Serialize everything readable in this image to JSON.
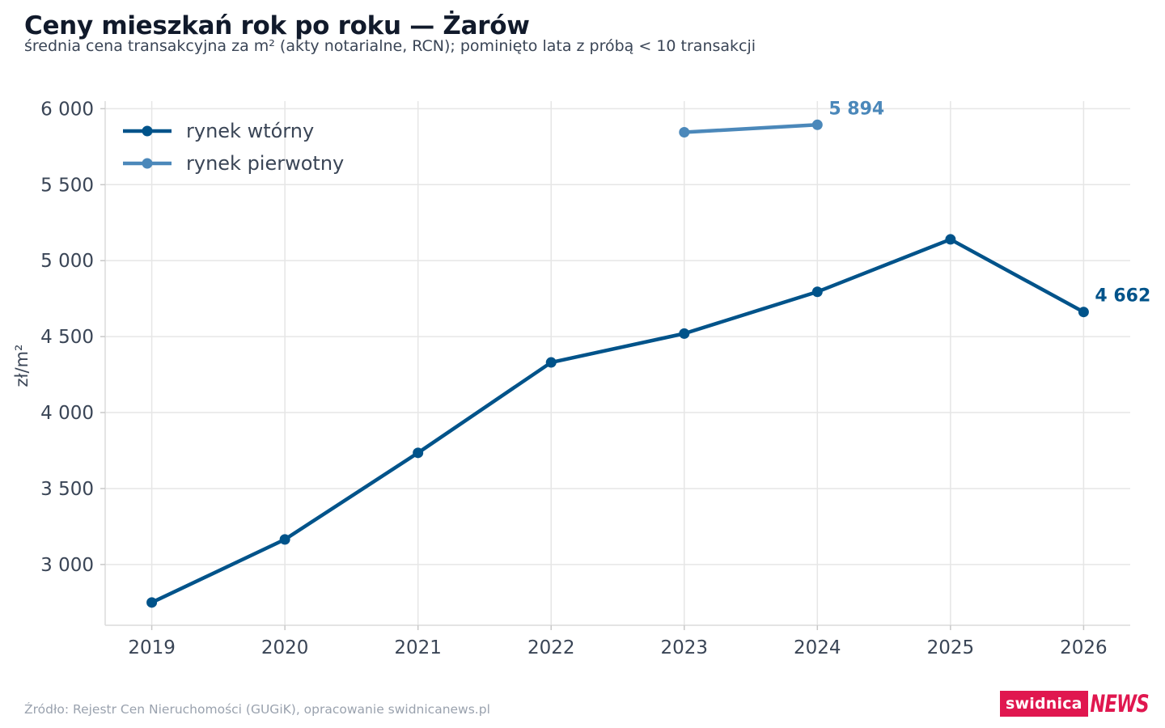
{
  "header": {
    "title": "Ceny mieszkań rok po roku — Żarów",
    "subtitle": "średnia cena transakcyjna za m² (akty notarialne, RCN); pominięto lata z próbą < 10 transakcji"
  },
  "footer": {
    "source": "Źródło: Rejestr Cen Nieruchomości (GUGiK), opracowanie swidnicanews.pl",
    "logo_part1": "swidnica",
    "logo_part2": "NEWS"
  },
  "colors": {
    "secondary_market": "#00538a",
    "primary_market": "#4b88ba",
    "grid": "#e6e6e6",
    "brand": "#e0174f"
  },
  "chart_data": {
    "type": "line",
    "x": [
      2019,
      2020,
      2021,
      2022,
      2023,
      2024,
      2025,
      2026
    ],
    "xlim": [
      2018.65,
      2026.35
    ],
    "ylim": [
      2600,
      6050
    ],
    "ylabel": "zł/m²",
    "y_ticks": [
      3000,
      3500,
      4000,
      4500,
      5000,
      5500,
      6000
    ],
    "y_tick_labels": [
      "3 000",
      "3 500",
      "4 000",
      "4 500",
      "5 000",
      "5 500",
      "6 000"
    ],
    "x_tick_labels": [
      "2019",
      "2020",
      "2021",
      "2022",
      "2023",
      "2024",
      "2025",
      "2026"
    ],
    "grid": true,
    "legend_position": "top-left",
    "series": [
      {
        "name": "rynek wtórny",
        "x": [
          2019,
          2020,
          2021,
          2022,
          2023,
          2024,
          2025,
          2026
        ],
        "values": [
          2750,
          3165,
          3735,
          4330,
          4520,
          4795,
          5140,
          4662
        ],
        "end_label": "4 662"
      },
      {
        "name": "rynek pierwotny",
        "x": [
          2023,
          2024
        ],
        "values": [
          5845,
          5894
        ],
        "end_label": "5 894"
      }
    ]
  }
}
